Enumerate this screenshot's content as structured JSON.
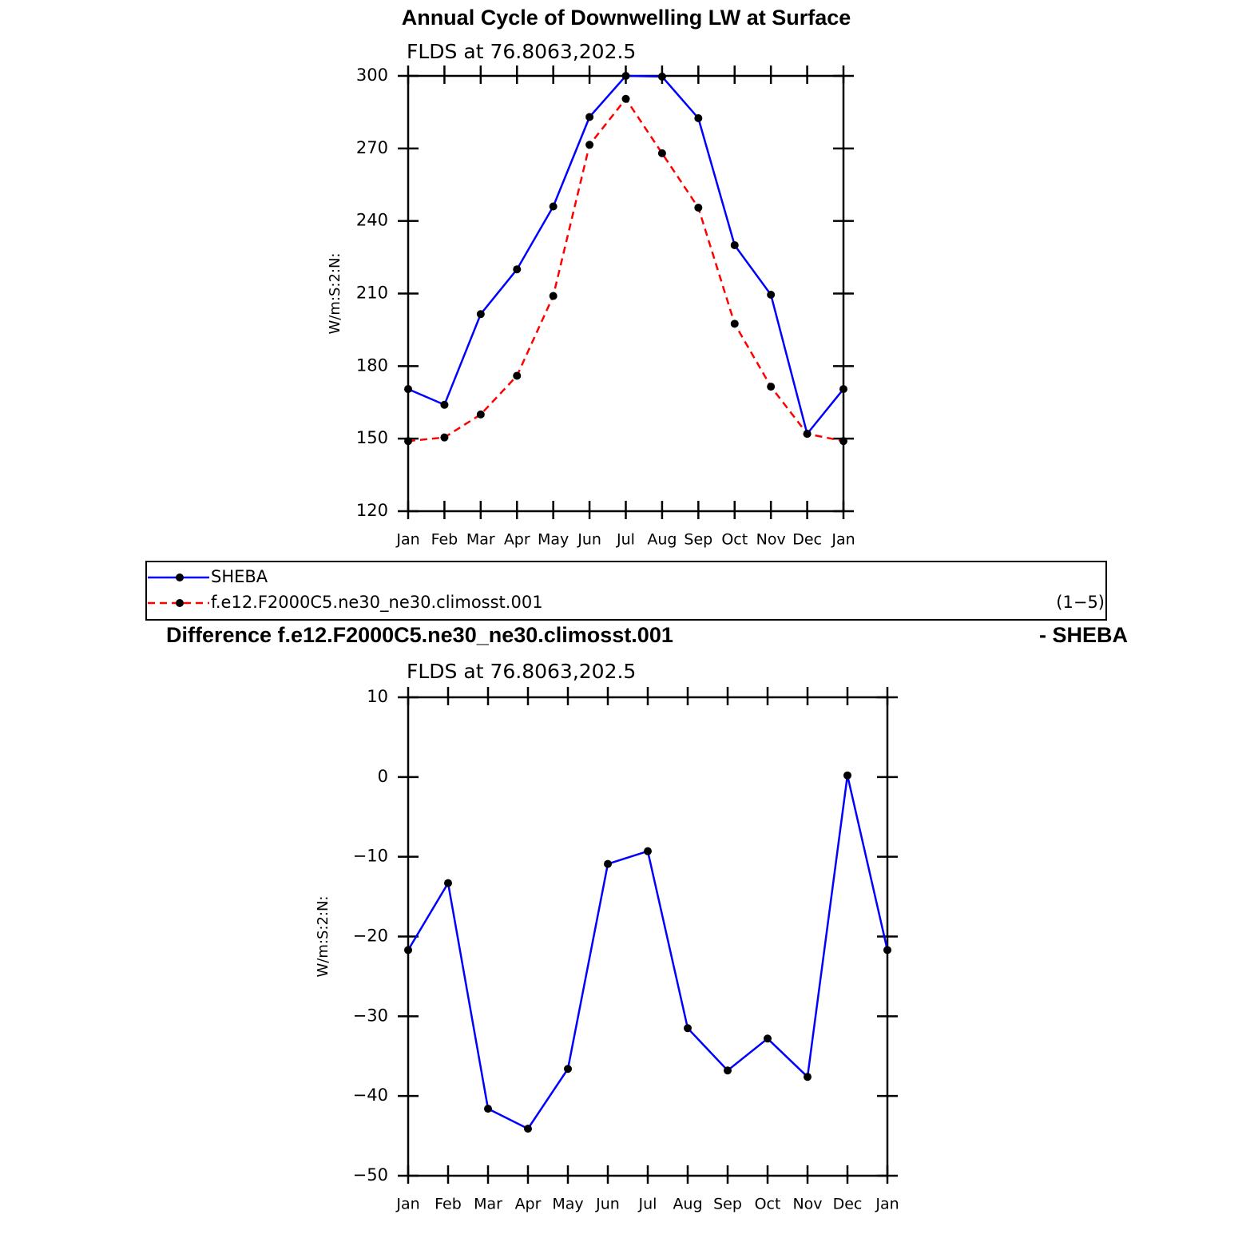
{
  "chart_data": [
    {
      "type": "line",
      "title": "Annual Cycle of Downwelling LW at Surface",
      "subtitle": "FLDS at 76.8063,202.5",
      "ylabel": "W/m:S:2:N:",
      "categories": [
        "Jan",
        "Feb",
        "Mar",
        "Apr",
        "May",
        "Jun",
        "Jul",
        "Aug",
        "Sep",
        "Oct",
        "Nov",
        "Dec",
        "Jan"
      ],
      "series": [
        {
          "name": "SHEBA",
          "color": "#0000ff",
          "line_style": "solid",
          "values": [
            170.5,
            164,
            201.5,
            220,
            246,
            283,
            300,
            299.7,
            282.5,
            230,
            209.5,
            152,
            170.5
          ]
        },
        {
          "name": "f.e12.F2000C5.ne30_ne30.climosst.001",
          "color": "#ff0000",
          "line_style": "dashed",
          "values": [
            149,
            150.5,
            160,
            176,
            209,
            271.5,
            290.5,
            268,
            245.5,
            197.5,
            171.5,
            152,
            149
          ]
        }
      ],
      "legend_note": "(1−5)",
      "legend": "below",
      "ylim": [
        120,
        300
      ],
      "yticks": [
        120,
        150,
        180,
        210,
        240,
        270,
        300
      ]
    },
    {
      "type": "line",
      "title": "Difference f.e12.F2000C5.ne30_ne30.climosst.001",
      "title_right": "- SHEBA",
      "subtitle": "FLDS at 76.8063,202.5",
      "ylabel": "W/m:S:2:N:",
      "categories": [
        "Jan",
        "Feb",
        "Mar",
        "Apr",
        "May",
        "Jun",
        "Jul",
        "Aug",
        "Sep",
        "Oct",
        "Nov",
        "Dec",
        "Jan"
      ],
      "series": [
        {
          "color": "#0000ff",
          "line_style": "solid",
          "values": [
            -21.7,
            -13.3,
            -41.6,
            -44.1,
            -36.6,
            -10.9,
            -9.3,
            -31.5,
            -36.8,
            -32.8,
            -37.6,
            0.2,
            -21.7
          ]
        }
      ],
      "ylim": [
        -50,
        10
      ],
      "yticks": [
        {
          "value": -50,
          "label": "−50"
        },
        {
          "value": -40,
          "label": "−40"
        },
        {
          "value": -30,
          "label": "−30"
        },
        {
          "value": -20,
          "label": "−20"
        },
        {
          "value": -10,
          "label": "−10"
        },
        0,
        10
      ]
    }
  ]
}
